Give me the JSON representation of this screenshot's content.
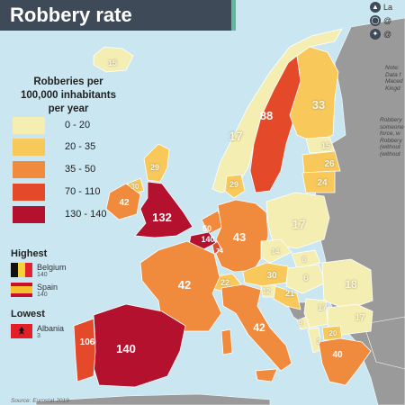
{
  "title": "Robbery rate",
  "legend": {
    "title_lines": [
      "Robberies per",
      "100,000 inhabitants",
      "per year"
    ],
    "items": [
      {
        "label": "0 - 20",
        "color": "#f4eeb3"
      },
      {
        "label": "20 - 35",
        "color": "#f8c85a"
      },
      {
        "label": "35 - 50",
        "color": "#f08a3c"
      },
      {
        "label": "70 - 110",
        "color": "#e44a2a"
      },
      {
        "label": "130 - 140",
        "color": "#b3112e"
      }
    ]
  },
  "highest": {
    "heading": "Highest",
    "entries": [
      {
        "country": "Belgium",
        "value": "140",
        "flag": "belgium-flag"
      },
      {
        "country": "Spain",
        "value": "140",
        "flag": "spain-flag"
      }
    ]
  },
  "lowest": {
    "heading": "Lowest",
    "entries": [
      {
        "country": "Albania",
        "value": "3",
        "flag": "albania-flag"
      }
    ]
  },
  "source": "Source: Eurostat 2019",
  "social": [
    {
      "icon": "share-icon",
      "text": "La"
    },
    {
      "icon": "instagram-icon",
      "text": "@"
    },
    {
      "icon": "twitter-icon",
      "text": "@"
    }
  ],
  "notes": {
    "note_lines": [
      "Note:",
      "Data f",
      "Maced",
      "Kingd"
    ],
    "robbery_lines": [
      "Robbery",
      "someone",
      "force, w",
      "Robbery",
      "(without",
      "(without"
    ]
  },
  "colors": {
    "sea": "#c9e6f1",
    "no_data": "#9a9a9a",
    "title_bg": "#3e4a57",
    "accent": "#5fb89a"
  },
  "regions": [
    {
      "name": "Iceland",
      "value": "15",
      "fill": "#f4eeb3"
    },
    {
      "name": "Norway",
      "value": "17",
      "fill": "#f4eeb3"
    },
    {
      "name": "Sweden",
      "value": "88",
      "fill": "#e44a2a"
    },
    {
      "name": "Finland",
      "value": "33",
      "fill": "#f8c85a"
    },
    {
      "name": "Estonia",
      "value": "15",
      "fill": "#f4eeb3"
    },
    {
      "name": "Latvia",
      "value": "26",
      "fill": "#f8c85a"
    },
    {
      "name": "Lithuania",
      "value": "24",
      "fill": "#f8c85a"
    },
    {
      "name": "Scotland",
      "value": "29",
      "fill": "#f8c85a"
    },
    {
      "name": "Northern Ireland",
      "value": "30",
      "fill": "#f8c85a"
    },
    {
      "name": "Ireland",
      "value": "42",
      "fill": "#f08a3c"
    },
    {
      "name": "England and Wales",
      "value": "132",
      "fill": "#b3112e"
    },
    {
      "name": "Denmark",
      "value": "29",
      "fill": "#f8c85a"
    },
    {
      "name": "Netherlands",
      "value": "50",
      "fill": "#f08a3c"
    },
    {
      "name": "Belgium",
      "value": "140",
      "fill": "#b3112e"
    },
    {
      "name": "Luxembourg",
      "value": "74",
      "fill": "#e44a2a"
    },
    {
      "name": "Germany",
      "value": "43",
      "fill": "#f08a3c"
    },
    {
      "name": "Poland",
      "value": "17",
      "fill": "#f4eeb3"
    },
    {
      "name": "Czechia",
      "value": "14",
      "fill": "#f4eeb3"
    },
    {
      "name": "Slovakia",
      "value": "8",
      "fill": "#f4eeb3"
    },
    {
      "name": "Austria",
      "value": "30",
      "fill": "#f8c85a"
    },
    {
      "name": "Hungary",
      "value": "6",
      "fill": "#f4eeb3"
    },
    {
      "name": "Romania",
      "value": "18",
      "fill": "#f4eeb3"
    },
    {
      "name": "Switzerland",
      "value": "22",
      "fill": "#f8c85a"
    },
    {
      "name": "Slovenia",
      "value": "12",
      "fill": "#f4eeb3"
    },
    {
      "name": "Croatia",
      "value": "21",
      "fill": "#f8c85a"
    },
    {
      "name": "Serbia",
      "value": "17",
      "fill": "#f4eeb3"
    },
    {
      "name": "Bulgaria",
      "value": "17",
      "fill": "#f4eeb3"
    },
    {
      "name": "Montenegro",
      "value": "9",
      "fill": "#f4eeb3"
    },
    {
      "name": "North Macedonia",
      "value": "20",
      "fill": "#f8c85a"
    },
    {
      "name": "Albania",
      "value": "3",
      "fill": "#f4eeb3"
    },
    {
      "name": "Greece",
      "value": "40",
      "fill": "#f08a3c"
    },
    {
      "name": "France",
      "value": "42",
      "fill": "#f08a3c"
    },
    {
      "name": "Italy",
      "value": "42",
      "fill": "#f08a3c"
    },
    {
      "name": "Spain",
      "value": "140",
      "fill": "#b3112e"
    },
    {
      "name": "Portugal",
      "value": "106",
      "fill": "#e44a2a"
    }
  ]
}
